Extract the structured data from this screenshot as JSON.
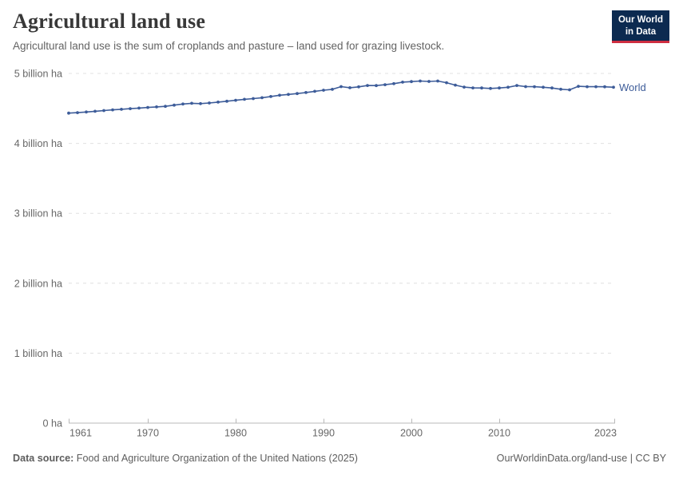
{
  "header": {
    "title": "Agricultural land use",
    "subtitle": "Agricultural land use is the sum of croplands and pasture – land used for grazing livestock.",
    "logo": {
      "line1": "Our World",
      "line2": "in Data"
    }
  },
  "footer": {
    "datasource_label": "Data source:",
    "datasource_value": " Food and Agriculture Organization of the United Nations (2025)",
    "attribution": "OurWorldinData.org/land-use | CC BY"
  },
  "colors": {
    "line": "#3d5c99",
    "grid": "#e0e0e0",
    "axis": "#b8b8b8",
    "tick_text": "#676767",
    "logo_bg": "#0c2a50",
    "logo_red": "#cf2e41"
  },
  "chart_data": {
    "type": "line",
    "title": "Agricultural land use",
    "xlabel": "",
    "ylabel": "",
    "unit": "billion ha",
    "grid": "dashed-horizontal",
    "legend_position": "end-of-line",
    "xlim": [
      1961,
      2023
    ],
    "ylim": [
      0,
      5
    ],
    "xticks": [
      1961,
      1970,
      1980,
      1990,
      2000,
      2010,
      2023
    ],
    "yticks": [
      {
        "value": 0,
        "label": "0 ha"
      },
      {
        "value": 1,
        "label": "1 billion ha"
      },
      {
        "value": 2,
        "label": "2 billion ha"
      },
      {
        "value": 3,
        "label": "3 billion ha"
      },
      {
        "value": 4,
        "label": "4 billion ha"
      },
      {
        "value": 5,
        "label": "5 billion ha"
      }
    ],
    "x": [
      1961,
      1962,
      1963,
      1964,
      1965,
      1966,
      1967,
      1968,
      1969,
      1970,
      1971,
      1972,
      1973,
      1974,
      1975,
      1976,
      1977,
      1978,
      1979,
      1980,
      1981,
      1982,
      1983,
      1984,
      1985,
      1986,
      1987,
      1988,
      1989,
      1990,
      1991,
      1992,
      1993,
      1994,
      1995,
      1996,
      1997,
      1998,
      1999,
      2000,
      2001,
      2002,
      2003,
      2004,
      2005,
      2006,
      2007,
      2008,
      2009,
      2010,
      2011,
      2012,
      2013,
      2014,
      2015,
      2016,
      2017,
      2018,
      2019,
      2020,
      2021,
      2022,
      2023
    ],
    "series": [
      {
        "name": "World",
        "color": "#3d5c99",
        "values": [
          4.433,
          4.44,
          4.449,
          4.459,
          4.469,
          4.479,
          4.488,
          4.497,
          4.505,
          4.514,
          4.522,
          4.53,
          4.547,
          4.563,
          4.573,
          4.569,
          4.578,
          4.59,
          4.603,
          4.617,
          4.63,
          4.64,
          4.653,
          4.67,
          4.688,
          4.7,
          4.712,
          4.727,
          4.744,
          4.76,
          4.773,
          4.812,
          4.796,
          4.808,
          4.828,
          4.826,
          4.839,
          4.854,
          4.876,
          4.884,
          4.892,
          4.886,
          4.891,
          4.868,
          4.833,
          4.805,
          4.793,
          4.792,
          4.785,
          4.792,
          4.803,
          4.828,
          4.812,
          4.81,
          4.803,
          4.792,
          4.774,
          4.766,
          4.816,
          4.811,
          4.81,
          4.809,
          4.803
        ]
      }
    ]
  }
}
